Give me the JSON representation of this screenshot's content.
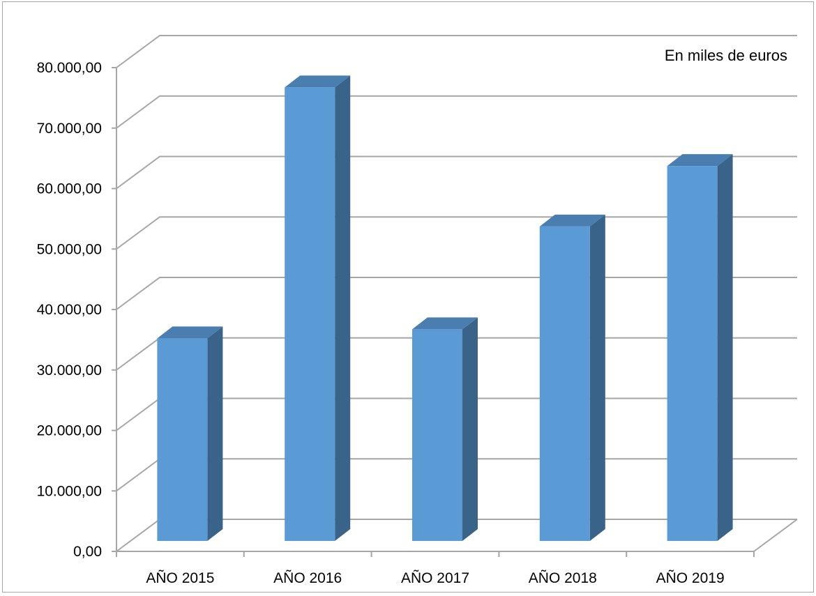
{
  "chart_data": {
    "type": "bar",
    "annotation": "En miles de euros",
    "categories": [
      "AÑO 2015",
      "AÑO 2016",
      "AÑO 2017",
      "AÑO 2018",
      "AÑO 2019"
    ],
    "values": [
      33500,
      75000,
      35000,
      52000,
      62000
    ],
    "ylim": [
      0,
      80000
    ],
    "yticks": [
      0,
      10000,
      20000,
      30000,
      40000,
      50000,
      60000,
      70000,
      80000
    ],
    "ytick_labels": [
      "0,00",
      "10.000,00",
      "20.000,00",
      "30.000,00",
      "40.000,00",
      "50.000,00",
      "60.000,00",
      "70.000,00",
      "80.000,00"
    ],
    "grid": true,
    "style": "3d-column",
    "colors": {
      "bar_front": "#5b9bd5",
      "bar_top": "#4a7eb0",
      "bar_side": "#3a6389",
      "grid": "#a6a6a6"
    }
  }
}
